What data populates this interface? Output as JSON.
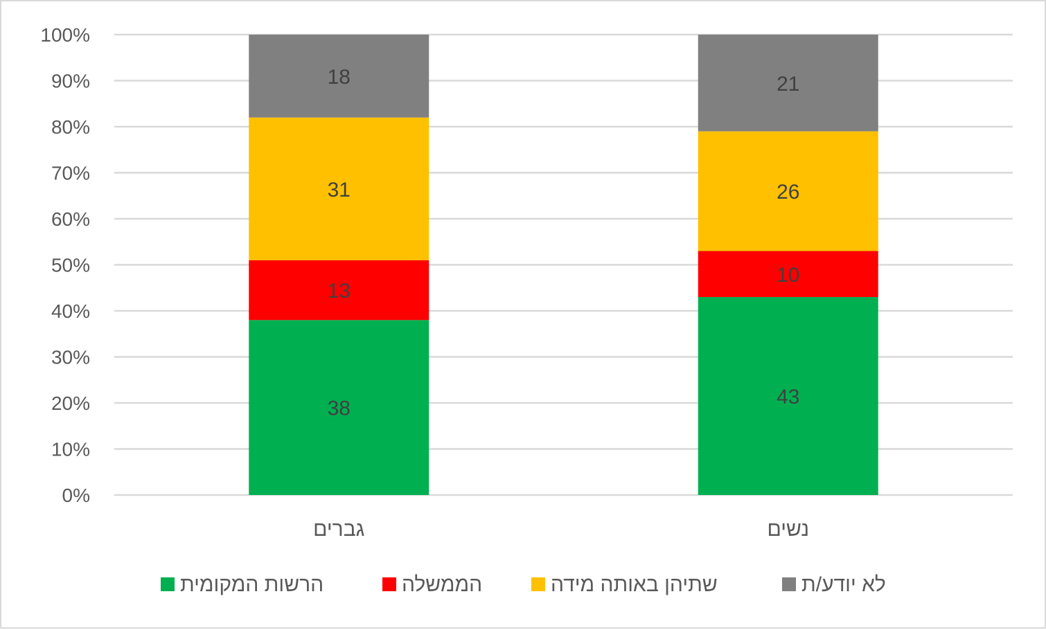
{
  "chart_data": {
    "type": "bar",
    "stacked": true,
    "title": "",
    "xlabel": "",
    "ylabel": "",
    "ylim": [
      0,
      100
    ],
    "yticks": [
      "0%",
      "10%",
      "20%",
      "30%",
      "40%",
      "50%",
      "60%",
      "70%",
      "80%",
      "90%",
      "100%"
    ],
    "grid": true,
    "legend_position": "bottom",
    "categories": [
      "גברים",
      "נשים"
    ],
    "series": [
      {
        "name": "הרשות המקומית",
        "color": "#00b050",
        "values": [
          38,
          43
        ]
      },
      {
        "name": "הממשלה",
        "color": "#ff0000",
        "values": [
          13,
          10
        ]
      },
      {
        "name": "שתיהן באותה מידה",
        "color": "#ffc000",
        "values": [
          31,
          26
        ]
      },
      {
        "name": "לא יודע/ת",
        "color": "#808080",
        "values": [
          18,
          21
        ]
      }
    ]
  }
}
